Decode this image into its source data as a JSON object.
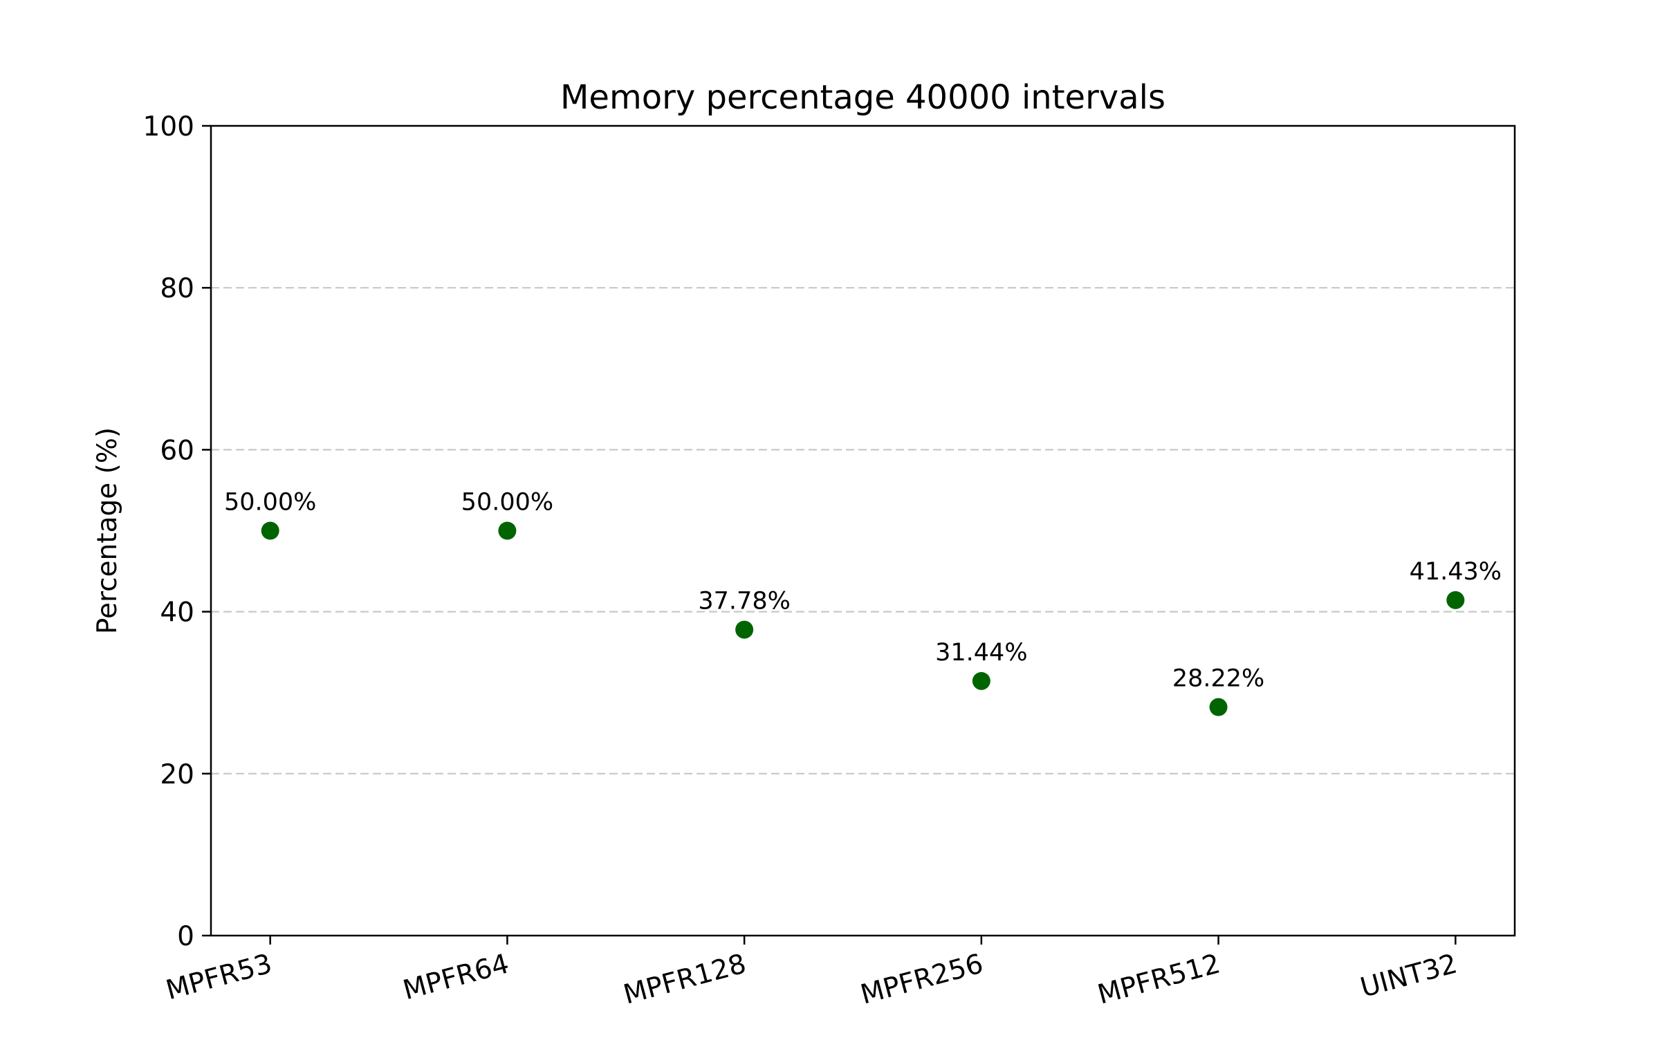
{
  "chart_data": {
    "type": "scatter",
    "title": "Memory percentage 40000 intervals",
    "xlabel": "",
    "ylabel": "Percentage (%)",
    "categories": [
      "MPFR53",
      "MPFR64",
      "MPFR128",
      "MPFR256",
      "MPFR512",
      "UINT32"
    ],
    "values": [
      50.0,
      50.0,
      37.78,
      31.44,
      28.22,
      41.43
    ],
    "data_labels": [
      "50.00%",
      "50.00%",
      "37.78%",
      "31.44%",
      "28.22%",
      "41.43%"
    ],
    "ylim": [
      0,
      100
    ],
    "yticks": [
      0,
      20,
      40,
      60,
      80,
      100
    ],
    "ytick_labels": [
      "0",
      "20",
      "40",
      "60",
      "80",
      "100"
    ],
    "grid": "y-dashed",
    "colors": {
      "marker": "#006400",
      "grid": "#c8c8c8",
      "frame": "#000000"
    }
  }
}
